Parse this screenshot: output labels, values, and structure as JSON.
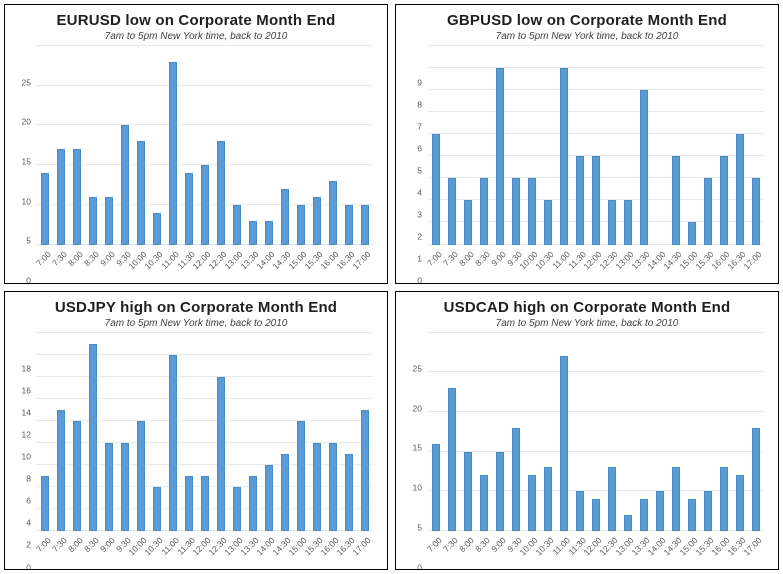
{
  "colors": {
    "bar_fill": "#5b9bd5",
    "bar_border": "#4a8bc6",
    "gridline": "#e8e8e8",
    "title_text": "#1f1f1f",
    "subtitle_text": "#404040",
    "tick_text": "#595959",
    "panel_border": "#000000"
  },
  "chart_data": [
    {
      "type": "bar",
      "title": "EURUSD low on Corporate Month End",
      "subtitle": "7am to 5pm New York time, back to 2010",
      "categories": [
        "7:00",
        "7:30",
        "8:00",
        "8:30",
        "9:00",
        "9:30",
        "10:00",
        "10:30",
        "11:00",
        "11:30",
        "12:00",
        "12:30",
        "13:00",
        "13:30",
        "14:00",
        "14:30",
        "15:00",
        "15:30",
        "16:00",
        "16:30",
        "17:00"
      ],
      "values": [
        9,
        12,
        12,
        6,
        6,
        15,
        13,
        4,
        23,
        9,
        10,
        13,
        5,
        3,
        3,
        7,
        5,
        6,
        8,
        5,
        5
      ],
      "xlabel": "",
      "ylabel": "",
      "ylim": [
        0,
        25
      ],
      "ytick_step": 5,
      "grid": true,
      "legend": "none"
    },
    {
      "type": "bar",
      "title": "GBPUSD low on Corporate Month End",
      "subtitle": "7am to 5pm New York time, back to 2010",
      "categories": [
        "7:00",
        "7:30",
        "8:00",
        "8:30",
        "9:00",
        "9:30",
        "10:00",
        "10:30",
        "11:00",
        "11:30",
        "12:00",
        "12:30",
        "13:00",
        "13:30",
        "14:00",
        "14:30",
        "15:00",
        "15:30",
        "16:00",
        "16:30",
        "17:00"
      ],
      "values": [
        5,
        3,
        2,
        3,
        8,
        3,
        3,
        2,
        8,
        4,
        4,
        2,
        2,
        7,
        0,
        4,
        1,
        3,
        4,
        5,
        3
      ],
      "xlabel": "",
      "ylabel": "",
      "ylim": [
        0,
        9
      ],
      "ytick_step": 1,
      "grid": true,
      "legend": "none"
    },
    {
      "type": "bar",
      "title": "USDJPY high on Corporate Month End",
      "subtitle": "7am to 5pm New York time, back to 2010",
      "categories": [
        "7:00",
        "7:30",
        "8:00",
        "8:30",
        "9:00",
        "9:30",
        "10:00",
        "10:30",
        "11:00",
        "11:30",
        "12:00",
        "12:30",
        "13:00",
        "13:30",
        "14:00",
        "14:30",
        "15:00",
        "15:30",
        "16:00",
        "16:30",
        "17:00"
      ],
      "values": [
        5,
        11,
        10,
        17,
        8,
        8,
        10,
        4,
        16,
        5,
        5,
        14,
        4,
        5,
        6,
        7,
        10,
        8,
        8,
        7,
        11
      ],
      "xlabel": "",
      "ylabel": "",
      "ylim": [
        0,
        18
      ],
      "ytick_step": 2,
      "grid": true,
      "legend": "none"
    },
    {
      "type": "bar",
      "title": "USDCAD high on Corporate Month End",
      "subtitle": "7am to 5pm New York time, back to 2010",
      "categories": [
        "7:00",
        "7:30",
        "8:00",
        "8:30",
        "9:00",
        "9:30",
        "10:00",
        "10:30",
        "11:00",
        "11:30",
        "12:00",
        "12:30",
        "13:00",
        "13:30",
        "14:00",
        "14:30",
        "15:00",
        "15:30",
        "16:00",
        "16:30",
        "17:00"
      ],
      "values": [
        11,
        18,
        10,
        7,
        10,
        13,
        7,
        8,
        22,
        5,
        4,
        8,
        2,
        4,
        5,
        8,
        4,
        5,
        8,
        7,
        13
      ],
      "xlabel": "",
      "ylabel": "",
      "ylim": [
        0,
        25
      ],
      "ytick_step": 5,
      "grid": true,
      "legend": "none"
    }
  ]
}
